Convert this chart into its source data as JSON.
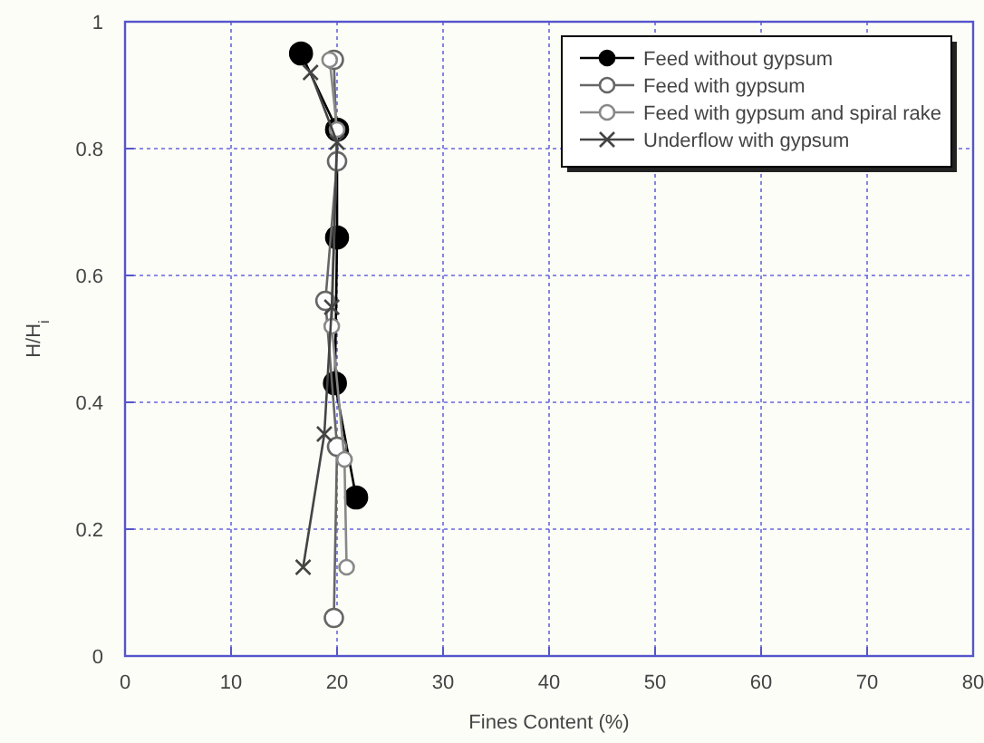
{
  "chart_data": {
    "type": "line",
    "xlabel": "Fines Content (%)",
    "ylabel": "H/H$_{i}$",
    "xlim": [
      0,
      80
    ],
    "ylim": [
      0,
      1
    ],
    "xticks": [
      0,
      10,
      20,
      30,
      40,
      50,
      60,
      70,
      80
    ],
    "yticks": [
      0,
      0.2,
      0.4,
      0.6,
      0.8,
      1
    ],
    "grid": true,
    "legend": "top right",
    "line_style": "solid",
    "series": [
      {
        "name": "Feed without gypsum",
        "color": "#000000",
        "marker": "circle",
        "x": [
          16.6,
          20.0,
          20.0,
          19.8,
          21.8
        ],
        "values": [
          0.95,
          0.83,
          0.66,
          0.43,
          0.25
        ]
      },
      {
        "name": "Feed with gypsum",
        "color": "#666666",
        "marker": "circle",
        "x": [
          19.7,
          20.0,
          18.9,
          20.0,
          19.7
        ],
        "values": [
          0.94,
          0.78,
          0.56,
          0.33,
          0.06
        ]
      },
      {
        "name": "Feed with gypsum and spiral rake",
        "color": "#888888",
        "marker": "circle",
        "x": [
          19.3,
          20.0,
          19.5,
          20.7,
          20.9
        ],
        "values": [
          0.94,
          0.83,
          0.52,
          0.31,
          0.14
        ]
      },
      {
        "name": "Underflow with gypsum",
        "color": "#444444",
        "marker": "cross",
        "x": [
          17.5,
          20.0,
          19.5,
          18.8,
          16.8
        ],
        "values": [
          0.92,
          0.81,
          0.55,
          0.35,
          0.14
        ]
      }
    ]
  }
}
